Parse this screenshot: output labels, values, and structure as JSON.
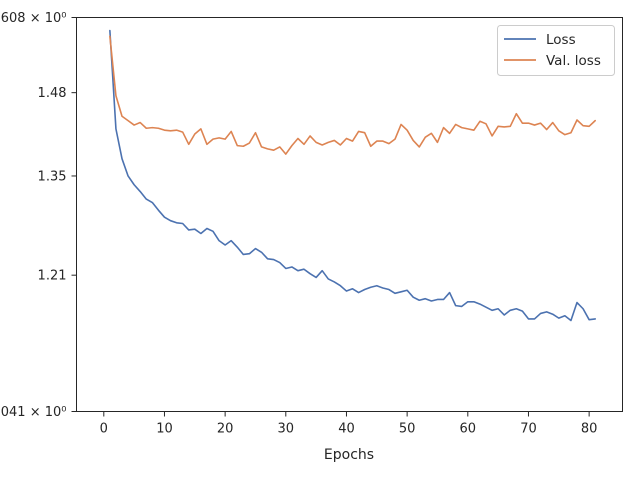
{
  "chart_data": {
    "type": "line",
    "xlabel": "Epochs",
    "ylabel": "",
    "y_scale": "log",
    "xlim": [
      -4.5,
      85.5
    ],
    "ylim": [
      1.041,
      1.608
    ],
    "grid": false,
    "legend_position": "top-right",
    "x_ticks": [
      0,
      10,
      20,
      30,
      40,
      50,
      60,
      70,
      80
    ],
    "x_tick_labels": [
      "0",
      "10",
      "20",
      "30",
      "40",
      "50",
      "60",
      "70",
      "80"
    ],
    "y_ticks": [
      1.608,
      1.48,
      1.35,
      1.21,
      1.041
    ],
    "y_tick_labels": [
      "1.608 × 10⁰",
      "1.48",
      "1.35",
      "1.21",
      "1.041 × 10⁰"
    ],
    "series": [
      {
        "name": "Loss",
        "color": "#4c72b0",
        "x": [
          1,
          2,
          3,
          4,
          5,
          6,
          7,
          8,
          9,
          10,
          11,
          12,
          13,
          14,
          15,
          16,
          17,
          18,
          19,
          20,
          21,
          22,
          23,
          24,
          25,
          26,
          27,
          28,
          29,
          30,
          31,
          32,
          33,
          34,
          35,
          36,
          37,
          38,
          39,
          40,
          41,
          42,
          43,
          44,
          45,
          46,
          47,
          48,
          49,
          50,
          51,
          52,
          53,
          54,
          55,
          56,
          57,
          58,
          59,
          60,
          61,
          62,
          63,
          64,
          65,
          66,
          67,
          68,
          69,
          70,
          71,
          72,
          73,
          74,
          75,
          76,
          77,
          78,
          79,
          80,
          81
        ],
        "values": [
          1.585,
          1.422,
          1.376,
          1.35,
          1.337,
          1.327,
          1.316,
          1.311,
          1.3,
          1.29,
          1.285,
          1.282,
          1.281,
          1.272,
          1.273,
          1.267,
          1.274,
          1.27,
          1.257,
          1.251,
          1.257,
          1.248,
          1.238,
          1.239,
          1.246,
          1.241,
          1.232,
          1.231,
          1.227,
          1.219,
          1.221,
          1.216,
          1.218,
          1.212,
          1.207,
          1.216,
          1.205,
          1.201,
          1.196,
          1.189,
          1.192,
          1.187,
          1.191,
          1.194,
          1.196,
          1.193,
          1.191,
          1.186,
          1.188,
          1.19,
          1.181,
          1.177,
          1.179,
          1.176,
          1.178,
          1.178,
          1.187,
          1.17,
          1.169,
          1.175,
          1.175,
          1.172,
          1.168,
          1.164,
          1.166,
          1.158,
          1.164,
          1.166,
          1.163,
          1.153,
          1.153,
          1.16,
          1.162,
          1.159,
          1.154,
          1.157,
          1.151,
          1.174,
          1.166,
          1.152,
          1.153
        ]
      },
      {
        "name": "Val. loss",
        "color": "#dd8452",
        "x": [
          1,
          2,
          3,
          4,
          5,
          6,
          7,
          8,
          9,
          10,
          11,
          12,
          13,
          14,
          15,
          16,
          17,
          18,
          19,
          20,
          21,
          22,
          23,
          24,
          25,
          26,
          27,
          28,
          29,
          30,
          31,
          32,
          33,
          34,
          35,
          36,
          37,
          38,
          39,
          40,
          41,
          42,
          43,
          44,
          45,
          46,
          47,
          48,
          49,
          50,
          51,
          52,
          53,
          54,
          55,
          56,
          57,
          58,
          59,
          60,
          61,
          62,
          63,
          64,
          65,
          66,
          67,
          68,
          69,
          70,
          71,
          72,
          73,
          74,
          75,
          76,
          77,
          78,
          79,
          80,
          81
        ],
        "values": [
          1.575,
          1.475,
          1.442,
          1.435,
          1.428,
          1.432,
          1.423,
          1.424,
          1.423,
          1.42,
          1.419,
          1.42,
          1.417,
          1.398,
          1.414,
          1.422,
          1.398,
          1.406,
          1.408,
          1.406,
          1.418,
          1.396,
          1.395,
          1.4,
          1.416,
          1.394,
          1.391,
          1.389,
          1.394,
          1.383,
          1.396,
          1.407,
          1.398,
          1.411,
          1.401,
          1.397,
          1.401,
          1.404,
          1.397,
          1.407,
          1.403,
          1.418,
          1.416,
          1.395,
          1.403,
          1.403,
          1.399,
          1.406,
          1.429,
          1.42,
          1.404,
          1.394,
          1.409,
          1.415,
          1.401,
          1.424,
          1.415,
          1.429,
          1.424,
          1.422,
          1.42,
          1.434,
          1.43,
          1.411,
          1.426,
          1.425,
          1.426,
          1.446,
          1.431,
          1.431,
          1.428,
          1.431,
          1.421,
          1.432,
          1.419,
          1.413,
          1.416,
          1.436,
          1.427,
          1.426,
          1.435
        ]
      }
    ]
  }
}
